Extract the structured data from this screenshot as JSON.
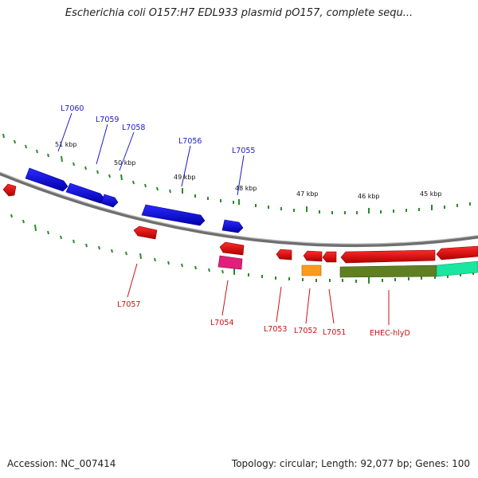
{
  "title": "Escherichia coli O157:H7 EDL933 plasmid pO157, complete sequ...",
  "footer": {
    "accession": "Accession: NC_007414",
    "summary": "Topology: circular; Length: 92,077 bp; Genes: 100"
  },
  "colors": {
    "forward_gene": "#1a1acc",
    "reverse_gene": "#dd0000",
    "backbone": "#8a8a8a",
    "tick": "#2a8a2a",
    "label_blue": "#1a1acc",
    "label_red": "#cc1111"
  },
  "kbp_markers": [
    "51 kbp",
    "50 kbp",
    "49 kbp",
    "48 kbp",
    "47 kbp",
    "46 kbp",
    "45 kbp"
  ],
  "top_labels": [
    "L7060",
    "L7059",
    "L7058",
    "L7056",
    "L7055"
  ],
  "bottom_labels": [
    "L7057",
    "L7054",
    "L7053",
    "L7052",
    "L7051",
    "EHEC-hlyD"
  ]
}
